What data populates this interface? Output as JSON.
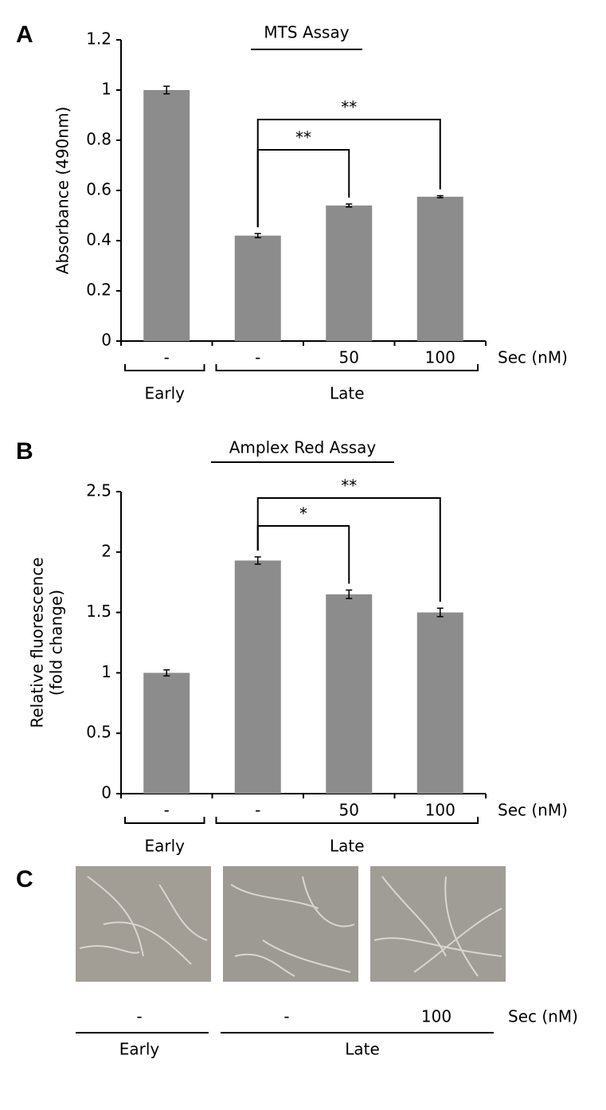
{
  "panel_labels": [
    "A",
    "B",
    "C"
  ],
  "chart_data": [
    {
      "type": "bar",
      "title": "MTS Assay",
      "ylabel": [
        "Absorbance (490nm)"
      ],
      "xlabel": "Sec (nM)",
      "categories": [
        "-",
        "-",
        "50",
        "100"
      ],
      "values": [
        1.0,
        0.42,
        0.54,
        0.575
      ],
      "errors": [
        0.015,
        0.008,
        0.006,
        0.004
      ],
      "color": "#8c8c8c",
      "ylim": [
        0,
        1.2
      ],
      "yticks": [
        0,
        0.2,
        0.4,
        0.6,
        0.8,
        1,
        1.2
      ],
      "groups": [
        {
          "name": "Early",
          "span": [
            0,
            0
          ]
        },
        {
          "name": "Late",
          "span": [
            1,
            3
          ]
        }
      ],
      "annotations": [
        {
          "text": "**",
          "from": 1,
          "to": 2
        },
        {
          "text": "**",
          "from": 1,
          "to": 3
        }
      ]
    },
    {
      "type": "bar",
      "title": "Amplex Red Assay",
      "ylabel": [
        "Relative fluorescence",
        "(fold change)"
      ],
      "xlabel": "Sec (nM)",
      "categories": [
        "-",
        "-",
        "50",
        "100"
      ],
      "values": [
        1.0,
        1.93,
        1.65,
        1.5
      ],
      "errors": [
        0.025,
        0.03,
        0.035,
        0.035
      ],
      "color": "#8c8c8c",
      "ylim": [
        0,
        2.5
      ],
      "yticks": [
        0,
        0.5,
        1,
        1.5,
        2,
        2.5
      ],
      "groups": [
        {
          "name": "Early",
          "span": [
            0,
            0
          ]
        },
        {
          "name": "Late",
          "span": [
            1,
            3
          ]
        }
      ],
      "annotations": [
        {
          "text": "*",
          "from": 1,
          "to": 2
        },
        {
          "text": "**",
          "from": 1,
          "to": 3
        }
      ]
    }
  ],
  "panel_c": {
    "categories": [
      "-",
      "-",
      "100"
    ],
    "xlabel": "Sec (nM)",
    "groups": [
      "Early",
      "Late"
    ]
  }
}
